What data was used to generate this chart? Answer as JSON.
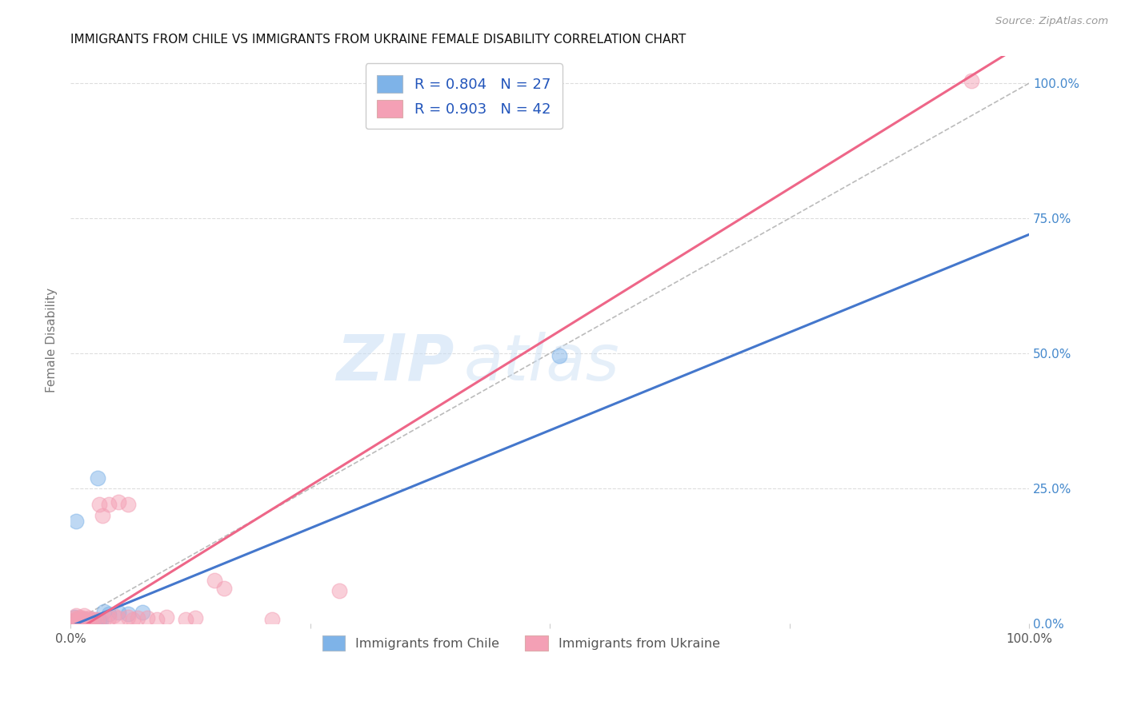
{
  "title": "IMMIGRANTS FROM CHILE VS IMMIGRANTS FROM UKRAINE FEMALE DISABILITY CORRELATION CHART",
  "source": "Source: ZipAtlas.com",
  "ylabel": "Female Disability",
  "chile_color": "#7EB3E8",
  "ukraine_color": "#F4A0B5",
  "chile_line_color": "#4477CC",
  "ukraine_line_color": "#EE6688",
  "watermark_text": "ZIP",
  "watermark_text2": "atlas",
  "chile_R": 0.804,
  "ukraine_R": 0.903,
  "chile_N": 27,
  "ukraine_N": 42,
  "xmin": 0.0,
  "xmax": 1.0,
  "ymin": 0.0,
  "ymax": 1.05,
  "chile_line": [
    [
      0.0,
      -0.005
    ],
    [
      1.0,
      0.72
    ]
  ],
  "ukraine_line": [
    [
      0.0,
      -0.02
    ],
    [
      1.0,
      1.08
    ]
  ],
  "chile_scatter": [
    [
      0.003,
      0.005
    ],
    [
      0.004,
      0.012
    ],
    [
      0.006,
      0.003
    ],
    [
      0.007,
      0.007
    ],
    [
      0.008,
      0.003
    ],
    [
      0.009,
      0.005
    ],
    [
      0.01,
      0.008
    ],
    [
      0.011,
      0.006
    ],
    [
      0.012,
      0.003
    ],
    [
      0.013,
      0.004
    ],
    [
      0.015,
      0.005
    ],
    [
      0.016,
      0.007
    ],
    [
      0.018,
      0.003
    ],
    [
      0.02,
      0.005
    ],
    [
      0.022,
      0.004
    ],
    [
      0.025,
      0.007
    ],
    [
      0.028,
      0.006
    ],
    [
      0.03,
      0.004
    ],
    [
      0.032,
      0.005
    ],
    [
      0.006,
      0.19
    ],
    [
      0.035,
      0.022
    ],
    [
      0.04,
      0.018
    ],
    [
      0.05,
      0.02
    ],
    [
      0.06,
      0.018
    ],
    [
      0.075,
      0.02
    ],
    [
      0.028,
      0.27
    ],
    [
      0.51,
      0.495
    ]
  ],
  "ukraine_scatter": [
    [
      0.003,
      0.006
    ],
    [
      0.004,
      0.01
    ],
    [
      0.005,
      0.008
    ],
    [
      0.006,
      0.015
    ],
    [
      0.007,
      0.005
    ],
    [
      0.008,
      0.007
    ],
    [
      0.009,
      0.012
    ],
    [
      0.01,
      0.005
    ],
    [
      0.011,
      0.008
    ],
    [
      0.012,
      0.01
    ],
    [
      0.013,
      0.007
    ],
    [
      0.014,
      0.015
    ],
    [
      0.015,
      0.005
    ],
    [
      0.016,
      0.008
    ],
    [
      0.018,
      0.007
    ],
    [
      0.019,
      0.01
    ],
    [
      0.02,
      0.005
    ],
    [
      0.022,
      0.008
    ],
    [
      0.025,
      0.007
    ],
    [
      0.028,
      0.008
    ],
    [
      0.03,
      0.22
    ],
    [
      0.04,
      0.22
    ],
    [
      0.05,
      0.225
    ],
    [
      0.06,
      0.22
    ],
    [
      0.033,
      0.2
    ],
    [
      0.035,
      0.008
    ],
    [
      0.04,
      0.01
    ],
    [
      0.045,
      0.015
    ],
    [
      0.05,
      0.01
    ],
    [
      0.06,
      0.012
    ],
    [
      0.065,
      0.008
    ],
    [
      0.07,
      0.01
    ],
    [
      0.08,
      0.01
    ],
    [
      0.09,
      0.008
    ],
    [
      0.1,
      0.012
    ],
    [
      0.12,
      0.008
    ],
    [
      0.13,
      0.01
    ],
    [
      0.15,
      0.08
    ],
    [
      0.16,
      0.065
    ],
    [
      0.21,
      0.008
    ],
    [
      0.28,
      0.06
    ],
    [
      0.94,
      1.005
    ]
  ]
}
